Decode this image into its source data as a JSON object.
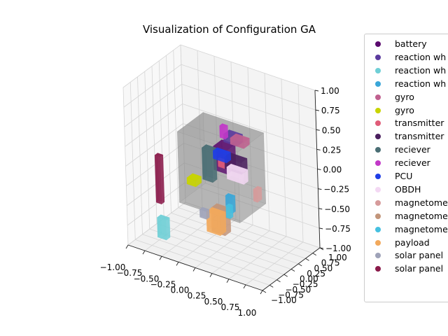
{
  "chart_data": {
    "type": "3d-bar",
    "title": "Visualization of Configuration GA",
    "xlabel": "",
    "ylabel": "",
    "zlabel": "",
    "xlim": [
      -1,
      1
    ],
    "ylim": [
      -1,
      1
    ],
    "zlim": [
      -1,
      1
    ],
    "x_ticks": [
      "−1.00",
      "−0.75",
      "−0.50",
      "−0.25",
      "0.00",
      "0.25",
      "0.50",
      "0.75",
      "1.00"
    ],
    "y_ticks": [
      "−1.00",
      "−0.75",
      "−0.50",
      "−0.25",
      "0.00",
      "0.25",
      "0.50",
      "0.75",
      "1.00"
    ],
    "z_ticks": [
      "−1.00",
      "−0.75",
      "−0.50",
      "−0.25",
      "0.00",
      "0.25",
      "0.50",
      "0.75",
      "1.00"
    ],
    "grid": true,
    "legend_position": "outside-right",
    "legend": [
      {
        "label": "battery",
        "color": "#5a0a6e"
      },
      {
        "label": "reaction wh",
        "color": "#5b3b9e"
      },
      {
        "label": "reaction wh",
        "color": "#6fcfd6"
      },
      {
        "label": "reaction wh",
        "color": "#3aa6d8"
      },
      {
        "label": "gyro",
        "color": "#c0608f"
      },
      {
        "label": "gyro",
        "color": "#c8d400"
      },
      {
        "label": "transmitter",
        "color": "#e05c78"
      },
      {
        "label": "transmitter",
        "color": "#4a1f5e"
      },
      {
        "label": "reciever",
        "color": "#4a6e74"
      },
      {
        "label": "reciever",
        "color": "#c238c8"
      },
      {
        "label": "PCU",
        "color": "#1f3ee6"
      },
      {
        "label": "OBDH",
        "color": "#f3d8f3"
      },
      {
        "label": "magnetome",
        "color": "#d69b9b"
      },
      {
        "label": "magnetome",
        "color": "#c2957a"
      },
      {
        "label": "magnetome",
        "color": "#45c0e0"
      },
      {
        "label": "payload",
        "color": "#f2a95c"
      },
      {
        "label": "solar panel",
        "color": "#9ea2b8"
      },
      {
        "label": "solar panel",
        "color": "#8a1a4a"
      }
    ]
  }
}
